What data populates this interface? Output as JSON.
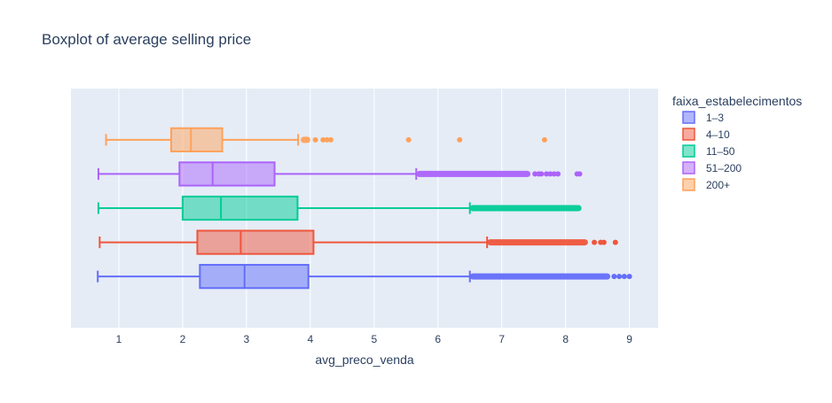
{
  "chart_data": {
    "type": "box",
    "orientation": "horizontal",
    "title": "Boxplot of average selling price",
    "xlabel": "avg_preco_venda",
    "xlim": [
      0.25,
      9.45
    ],
    "xticks": [
      1,
      2,
      3,
      4,
      5,
      6,
      7,
      8,
      9
    ],
    "grid": true,
    "legend": {
      "title": "faixa_estabelecimentos",
      "placement": "top-right"
    },
    "series": [
      {
        "name": "1–3",
        "color": "#636efa",
        "min": 0.67,
        "q1": 2.27,
        "median": 2.97,
        "q3": 3.97,
        "upper_fence": 6.5,
        "outlier_range": [
          6.5,
          8.7
        ],
        "outliers": [
          8.76,
          8.84,
          8.92,
          9.0
        ]
      },
      {
        "name": "4–10",
        "color": "#ef553b",
        "min": 0.7,
        "q1": 2.23,
        "median": 2.91,
        "q3": 4.05,
        "upper_fence": 6.77,
        "outlier_range": [
          6.77,
          8.35
        ],
        "outliers": [
          8.45,
          8.55,
          8.6,
          8.78
        ]
      },
      {
        "name": "11–50",
        "color": "#00cc96",
        "min": 0.68,
        "q1": 2.0,
        "median": 2.6,
        "q3": 3.8,
        "upper_fence": 6.5,
        "outlier_range": [
          6.5,
          8.25
        ],
        "outliers": []
      },
      {
        "name": "51–200",
        "color": "#ab63fa",
        "min": 0.68,
        "q1": 1.95,
        "median": 2.47,
        "q3": 3.44,
        "upper_fence": 5.66,
        "outlier_range": [
          5.66,
          7.45
        ],
        "outliers": [
          7.52,
          7.58,
          7.62,
          7.7,
          7.76,
          7.82,
          7.88,
          8.18,
          8.22
        ]
      },
      {
        "name": "200+",
        "color": "#ffa15a",
        "min": 0.8,
        "q1": 1.82,
        "median": 2.13,
        "q3": 2.62,
        "upper_fence": 3.81,
        "outlier_range": [
          3.85,
          4.0
        ],
        "outliers": [
          4.08,
          4.2,
          4.26,
          4.32,
          5.54,
          6.34,
          7.67
        ]
      }
    ]
  }
}
